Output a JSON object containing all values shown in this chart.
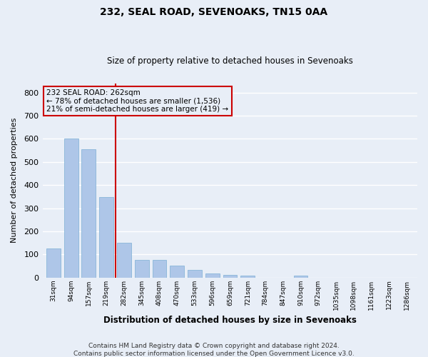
{
  "title": "232, SEAL ROAD, SEVENOAKS, TN15 0AA",
  "subtitle": "Size of property relative to detached houses in Sevenoaks",
  "xlabel": "Distribution of detached houses by size in Sevenoaks",
  "ylabel": "Number of detached properties",
  "categories": [
    "31sqm",
    "94sqm",
    "157sqm",
    "219sqm",
    "282sqm",
    "345sqm",
    "408sqm",
    "470sqm",
    "533sqm",
    "596sqm",
    "659sqm",
    "721sqm",
    "784sqm",
    "847sqm",
    "910sqm",
    "972sqm",
    "1035sqm",
    "1098sqm",
    "1161sqm",
    "1223sqm",
    "1286sqm"
  ],
  "values": [
    125,
    600,
    555,
    347,
    150,
    75,
    75,
    52,
    32,
    17,
    13,
    8,
    0,
    0,
    10,
    0,
    0,
    0,
    0,
    0,
    0
  ],
  "bar_color": "#aec6e8",
  "bar_edge_color": "#7bafd4",
  "vline_color": "#cc0000",
  "vline_pos": 3.5,
  "annotation_title": "232 SEAL ROAD: 262sqm",
  "annotation_line1": "← 78% of detached houses are smaller (1,536)",
  "annotation_line2": "21% of semi-detached houses are larger (419) →",
  "annotation_box_color": "#cc0000",
  "ylim": [
    0,
    840
  ],
  "yticks": [
    0,
    100,
    200,
    300,
    400,
    500,
    600,
    700,
    800
  ],
  "footer_line1": "Contains HM Land Registry data © Crown copyright and database right 2024.",
  "footer_line2": "Contains public sector information licensed under the Open Government Licence v3.0.",
  "bg_color": "#e8eef7",
  "grid_color": "#ffffff"
}
